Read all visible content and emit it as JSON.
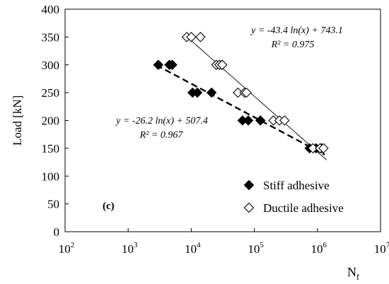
{
  "chart_data": {
    "type": "scatter",
    "panel_label": "(c)",
    "xlabel_main": "N",
    "xlabel_sub": "f",
    "ylabel": "Load [kN]",
    "xscale": "log",
    "xlim": [
      100,
      10000000
    ],
    "ylim": [
      0,
      400
    ],
    "yticks": [
      "0",
      "50",
      "100",
      "150",
      "200",
      "250",
      "300",
      "350",
      "400"
    ],
    "xticks": [
      {
        "base": "10",
        "exp": "2",
        "value": 100
      },
      {
        "base": "10",
        "exp": "3",
        "value": 1000
      },
      {
        "base": "10",
        "exp": "4",
        "value": 10000
      },
      {
        "base": "10",
        "exp": "5",
        "value": 100000
      },
      {
        "base": "10",
        "exp": "6",
        "value": 1000000
      },
      {
        "base": "10",
        "exp": "7",
        "value": 10000000
      }
    ],
    "grid": false,
    "legend_position": "bottom-right",
    "series": [
      {
        "name": "Stiff adhesive",
        "marker": "filled-diamond",
        "color": "#000000",
        "points": [
          [
            3000,
            300
          ],
          [
            4500,
            300
          ],
          [
            5000,
            300
          ],
          [
            10500,
            250
          ],
          [
            12500,
            250
          ],
          [
            21000,
            250
          ],
          [
            65000,
            200
          ],
          [
            80000,
            200
          ],
          [
            125000,
            200
          ],
          [
            750000,
            150
          ],
          [
            950000,
            150
          ],
          [
            1150000,
            150
          ]
        ],
        "trendline": {
          "a": -26.2,
          "b": 507.4,
          "style": "dashed",
          "x_range": [
            2800,
            1300000
          ]
        },
        "equation": "y = -26.2 ln(x) + 507.4",
        "r2_label": "R² = 0.967"
      },
      {
        "name": "Ductile adhesive",
        "marker": "open-diamond",
        "color": "#000000",
        "points": [
          [
            8500,
            350
          ],
          [
            10000,
            350
          ],
          [
            14000,
            350
          ],
          [
            25000,
            300
          ],
          [
            28000,
            300
          ],
          [
            31000,
            300
          ],
          [
            55000,
            250
          ],
          [
            70000,
            250
          ],
          [
            75000,
            250
          ],
          [
            200000,
            200
          ],
          [
            250000,
            200
          ],
          [
            300000,
            200
          ],
          [
            850000,
            150
          ],
          [
            1100000,
            150
          ],
          [
            1250000,
            150
          ]
        ],
        "trendline": {
          "a": -43.4,
          "b": 743.1,
          "style": "solid",
          "x_range": [
            8500,
            1400000
          ]
        },
        "equation": "y = -43.4 ln(x) + 743.1",
        "r2_label": "R² = 0.975"
      }
    ]
  }
}
